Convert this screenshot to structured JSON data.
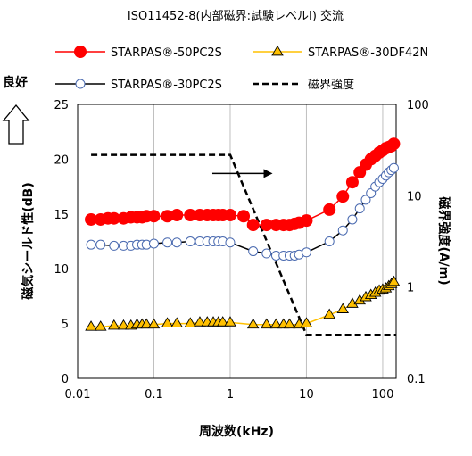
{
  "chart_data": {
    "type": "scatter",
    "title": "ISO11452-8(内部磁界:試験レベルⅠ) 交流",
    "xlabel": "周波数(kHz)",
    "ylabel": "磁気シールド性(dB)",
    "ylabel_right": "磁界強度(A/m)",
    "better_label": "良好",
    "x_scale": "log",
    "xlim": [
      0.01,
      150
    ],
    "ylim": [
      0,
      25
    ],
    "y2_scale": "log",
    "y2lim": [
      0.1,
      100
    ],
    "x_ticks": [
      {
        "value": 0.01,
        "label": "0.01"
      },
      {
        "value": 0.1,
        "label": "0.1"
      },
      {
        "value": 1,
        "label": "1"
      },
      {
        "value": 10,
        "label": "10"
      },
      {
        "value": 100,
        "label": "100"
      }
    ],
    "y_ticks": [
      {
        "value": 0,
        "label": "0"
      },
      {
        "value": 5,
        "label": "5"
      },
      {
        "value": 10,
        "label": "10"
      },
      {
        "value": 15,
        "label": "15"
      },
      {
        "value": 20,
        "label": "20"
      },
      {
        "value": 25,
        "label": "25"
      }
    ],
    "y2_ticks": [
      {
        "value": 0.1,
        "label": "0.1"
      },
      {
        "value": 1,
        "label": "1"
      },
      {
        "value": 10,
        "label": "10"
      },
      {
        "value": 100,
        "label": "100"
      }
    ],
    "grid": "vertical-major",
    "legend_position": "top",
    "series": [
      {
        "name": "STARPAS®-50PC2S",
        "axis": "left",
        "marker": "circle",
        "color": "#ff0000",
        "fill": "#ff0000",
        "x": [
          0.015,
          0.02,
          0.025,
          0.03,
          0.04,
          0.05,
          0.06,
          0.07,
          0.08,
          0.1,
          0.15,
          0.2,
          0.3,
          0.4,
          0.5,
          0.6,
          0.7,
          0.8,
          1.0,
          1.5,
          2.0,
          3.0,
          4.0,
          5.0,
          6.0,
          7.0,
          8.0,
          10,
          20,
          30,
          40,
          50,
          60,
          70,
          80,
          90,
          100,
          110,
          120,
          130,
          140
        ],
        "y": [
          14.5,
          14.5,
          14.6,
          14.6,
          14.6,
          14.7,
          14.7,
          14.7,
          14.8,
          14.8,
          14.8,
          14.9,
          14.9,
          14.9,
          14.9,
          14.9,
          14.9,
          14.9,
          14.9,
          14.8,
          14.0,
          14.0,
          14.0,
          14.0,
          14.0,
          14.1,
          14.2,
          14.4,
          15.4,
          16.6,
          17.9,
          18.8,
          19.5,
          20.0,
          20.3,
          20.6,
          20.8,
          21.0,
          21.1,
          21.2,
          21.4
        ]
      },
      {
        "name": "STARPAS®-30DF42N",
        "axis": "left",
        "marker": "triangle",
        "color": "#ffc000",
        "fill": "#ffc000",
        "x": [
          0.015,
          0.02,
          0.03,
          0.04,
          0.05,
          0.06,
          0.07,
          0.08,
          0.1,
          0.15,
          0.2,
          0.3,
          0.4,
          0.5,
          0.6,
          0.7,
          0.8,
          1.0,
          2.0,
          3.0,
          4.0,
          5.0,
          6.0,
          8.0,
          10,
          20,
          30,
          40,
          50,
          60,
          70,
          80,
          90,
          100,
          110,
          120,
          130,
          140
        ],
        "y": [
          4.7,
          4.7,
          4.8,
          4.8,
          4.8,
          4.9,
          4.9,
          4.9,
          4.9,
          5.0,
          5.0,
          5.0,
          5.1,
          5.1,
          5.1,
          5.1,
          5.1,
          5.1,
          4.9,
          4.9,
          4.9,
          4.9,
          4.9,
          4.9,
          5.0,
          5.8,
          6.3,
          6.8,
          7.1,
          7.4,
          7.6,
          7.8,
          8.0,
          8.1,
          8.2,
          8.4,
          8.6,
          8.8
        ]
      },
      {
        "name": "STARPAS®-30PC2S",
        "axis": "left",
        "marker": "circle",
        "color": "#000000",
        "fill": "#ffffff",
        "x": [
          0.015,
          0.02,
          0.03,
          0.04,
          0.05,
          0.06,
          0.07,
          0.08,
          0.1,
          0.15,
          0.2,
          0.3,
          0.4,
          0.5,
          0.6,
          0.7,
          0.8,
          1.0,
          2.0,
          3.0,
          4.0,
          5.0,
          6.0,
          7.0,
          8.0,
          10,
          20,
          30,
          40,
          50,
          60,
          70,
          80,
          90,
          100,
          110,
          120,
          130,
          140
        ],
        "y": [
          12.2,
          12.2,
          12.1,
          12.1,
          12.1,
          12.2,
          12.2,
          12.2,
          12.3,
          12.4,
          12.4,
          12.5,
          12.5,
          12.5,
          12.5,
          12.5,
          12.5,
          12.4,
          11.6,
          11.4,
          11.2,
          11.2,
          11.2,
          11.2,
          11.3,
          11.5,
          12.5,
          13.5,
          14.5,
          15.5,
          16.3,
          16.9,
          17.5,
          17.9,
          18.2,
          18.5,
          18.8,
          19.0,
          19.2
        ]
      },
      {
        "name": "磁界強度",
        "axis": "right",
        "marker": "none",
        "line": "dashed",
        "color": "#000000",
        "x": [
          0.015,
          1,
          10,
          150
        ],
        "y": [
          28,
          28,
          0.3,
          0.3
        ]
      }
    ],
    "annotations": [
      {
        "type": "arrow",
        "direction": "right",
        "from_x": 1.0,
        "to_x": 3.6,
        "y": 18.7,
        "description": "arrow pointing to right axis series"
      },
      {
        "type": "arrow",
        "direction": "up",
        "label_ref": "better_label",
        "position": "left-outside"
      }
    ]
  }
}
